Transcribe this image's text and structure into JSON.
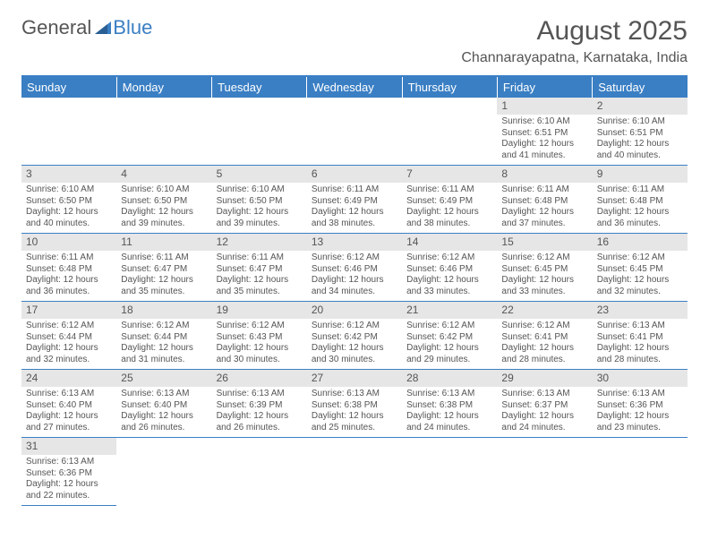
{
  "logo": {
    "text1": "General",
    "text2": "Blue"
  },
  "title": {
    "month": "August 2025",
    "subtitle": "Channarayapatna, Karnataka, India"
  },
  "colors": {
    "accent": "#3a7fc4",
    "grey_band": "#e6e6e6",
    "text": "#555555"
  },
  "day_headers": [
    "Sunday",
    "Monday",
    "Tuesday",
    "Wednesday",
    "Thursday",
    "Friday",
    "Saturday"
  ],
  "weeks": [
    [
      null,
      null,
      null,
      null,
      null,
      {
        "num": "1",
        "sunrise": "Sunrise: 6:10 AM",
        "sunset": "Sunset: 6:51 PM",
        "daylight1": "Daylight: 12 hours",
        "daylight2": "and 41 minutes."
      },
      {
        "num": "2",
        "sunrise": "Sunrise: 6:10 AM",
        "sunset": "Sunset: 6:51 PM",
        "daylight1": "Daylight: 12 hours",
        "daylight2": "and 40 minutes."
      }
    ],
    [
      {
        "num": "3",
        "sunrise": "Sunrise: 6:10 AM",
        "sunset": "Sunset: 6:50 PM",
        "daylight1": "Daylight: 12 hours",
        "daylight2": "and 40 minutes."
      },
      {
        "num": "4",
        "sunrise": "Sunrise: 6:10 AM",
        "sunset": "Sunset: 6:50 PM",
        "daylight1": "Daylight: 12 hours",
        "daylight2": "and 39 minutes."
      },
      {
        "num": "5",
        "sunrise": "Sunrise: 6:10 AM",
        "sunset": "Sunset: 6:50 PM",
        "daylight1": "Daylight: 12 hours",
        "daylight2": "and 39 minutes."
      },
      {
        "num": "6",
        "sunrise": "Sunrise: 6:11 AM",
        "sunset": "Sunset: 6:49 PM",
        "daylight1": "Daylight: 12 hours",
        "daylight2": "and 38 minutes."
      },
      {
        "num": "7",
        "sunrise": "Sunrise: 6:11 AM",
        "sunset": "Sunset: 6:49 PM",
        "daylight1": "Daylight: 12 hours",
        "daylight2": "and 38 minutes."
      },
      {
        "num": "8",
        "sunrise": "Sunrise: 6:11 AM",
        "sunset": "Sunset: 6:48 PM",
        "daylight1": "Daylight: 12 hours",
        "daylight2": "and 37 minutes."
      },
      {
        "num": "9",
        "sunrise": "Sunrise: 6:11 AM",
        "sunset": "Sunset: 6:48 PM",
        "daylight1": "Daylight: 12 hours",
        "daylight2": "and 36 minutes."
      }
    ],
    [
      {
        "num": "10",
        "sunrise": "Sunrise: 6:11 AM",
        "sunset": "Sunset: 6:48 PM",
        "daylight1": "Daylight: 12 hours",
        "daylight2": "and 36 minutes."
      },
      {
        "num": "11",
        "sunrise": "Sunrise: 6:11 AM",
        "sunset": "Sunset: 6:47 PM",
        "daylight1": "Daylight: 12 hours",
        "daylight2": "and 35 minutes."
      },
      {
        "num": "12",
        "sunrise": "Sunrise: 6:11 AM",
        "sunset": "Sunset: 6:47 PM",
        "daylight1": "Daylight: 12 hours",
        "daylight2": "and 35 minutes."
      },
      {
        "num": "13",
        "sunrise": "Sunrise: 6:12 AM",
        "sunset": "Sunset: 6:46 PM",
        "daylight1": "Daylight: 12 hours",
        "daylight2": "and 34 minutes."
      },
      {
        "num": "14",
        "sunrise": "Sunrise: 6:12 AM",
        "sunset": "Sunset: 6:46 PM",
        "daylight1": "Daylight: 12 hours",
        "daylight2": "and 33 minutes."
      },
      {
        "num": "15",
        "sunrise": "Sunrise: 6:12 AM",
        "sunset": "Sunset: 6:45 PM",
        "daylight1": "Daylight: 12 hours",
        "daylight2": "and 33 minutes."
      },
      {
        "num": "16",
        "sunrise": "Sunrise: 6:12 AM",
        "sunset": "Sunset: 6:45 PM",
        "daylight1": "Daylight: 12 hours",
        "daylight2": "and 32 minutes."
      }
    ],
    [
      {
        "num": "17",
        "sunrise": "Sunrise: 6:12 AM",
        "sunset": "Sunset: 6:44 PM",
        "daylight1": "Daylight: 12 hours",
        "daylight2": "and 32 minutes."
      },
      {
        "num": "18",
        "sunrise": "Sunrise: 6:12 AM",
        "sunset": "Sunset: 6:44 PM",
        "daylight1": "Daylight: 12 hours",
        "daylight2": "and 31 minutes."
      },
      {
        "num": "19",
        "sunrise": "Sunrise: 6:12 AM",
        "sunset": "Sunset: 6:43 PM",
        "daylight1": "Daylight: 12 hours",
        "daylight2": "and 30 minutes."
      },
      {
        "num": "20",
        "sunrise": "Sunrise: 6:12 AM",
        "sunset": "Sunset: 6:42 PM",
        "daylight1": "Daylight: 12 hours",
        "daylight2": "and 30 minutes."
      },
      {
        "num": "21",
        "sunrise": "Sunrise: 6:12 AM",
        "sunset": "Sunset: 6:42 PM",
        "daylight1": "Daylight: 12 hours",
        "daylight2": "and 29 minutes."
      },
      {
        "num": "22",
        "sunrise": "Sunrise: 6:12 AM",
        "sunset": "Sunset: 6:41 PM",
        "daylight1": "Daylight: 12 hours",
        "daylight2": "and 28 minutes."
      },
      {
        "num": "23",
        "sunrise": "Sunrise: 6:13 AM",
        "sunset": "Sunset: 6:41 PM",
        "daylight1": "Daylight: 12 hours",
        "daylight2": "and 28 minutes."
      }
    ],
    [
      {
        "num": "24",
        "sunrise": "Sunrise: 6:13 AM",
        "sunset": "Sunset: 6:40 PM",
        "daylight1": "Daylight: 12 hours",
        "daylight2": "and 27 minutes."
      },
      {
        "num": "25",
        "sunrise": "Sunrise: 6:13 AM",
        "sunset": "Sunset: 6:40 PM",
        "daylight1": "Daylight: 12 hours",
        "daylight2": "and 26 minutes."
      },
      {
        "num": "26",
        "sunrise": "Sunrise: 6:13 AM",
        "sunset": "Sunset: 6:39 PM",
        "daylight1": "Daylight: 12 hours",
        "daylight2": "and 26 minutes."
      },
      {
        "num": "27",
        "sunrise": "Sunrise: 6:13 AM",
        "sunset": "Sunset: 6:38 PM",
        "daylight1": "Daylight: 12 hours",
        "daylight2": "and 25 minutes."
      },
      {
        "num": "28",
        "sunrise": "Sunrise: 6:13 AM",
        "sunset": "Sunset: 6:38 PM",
        "daylight1": "Daylight: 12 hours",
        "daylight2": "and 24 minutes."
      },
      {
        "num": "29",
        "sunrise": "Sunrise: 6:13 AM",
        "sunset": "Sunset: 6:37 PM",
        "daylight1": "Daylight: 12 hours",
        "daylight2": "and 24 minutes."
      },
      {
        "num": "30",
        "sunrise": "Sunrise: 6:13 AM",
        "sunset": "Sunset: 6:36 PM",
        "daylight1": "Daylight: 12 hours",
        "daylight2": "and 23 minutes."
      }
    ],
    [
      {
        "num": "31",
        "sunrise": "Sunrise: 6:13 AM",
        "sunset": "Sunset: 6:36 PM",
        "daylight1": "Daylight: 12 hours",
        "daylight2": "and 22 minutes."
      },
      null,
      null,
      null,
      null,
      null,
      null
    ]
  ]
}
